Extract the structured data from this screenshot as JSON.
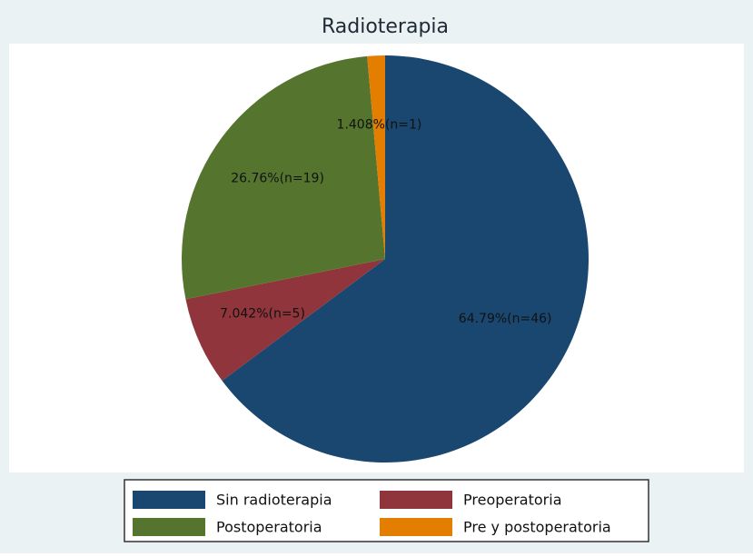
{
  "chart_data": {
    "type": "pie",
    "title": "Radioterapia",
    "categories": [
      "Sin radioterapia",
      "Preoperatoria",
      "Postoperatoria",
      "Pre y postoperatoria"
    ],
    "values": [
      64.79,
      7.042,
      26.76,
      1.408
    ],
    "value_labels": [
      "64.79%(n=46)",
      "7.042%(n=5)",
      "26.76%(n=19)",
      "1.408%(n=1)"
    ],
    "colors": [
      "#1a476f",
      "#90353b",
      "#55752f",
      "#e37e00"
    ],
    "legend": "bottom"
  }
}
